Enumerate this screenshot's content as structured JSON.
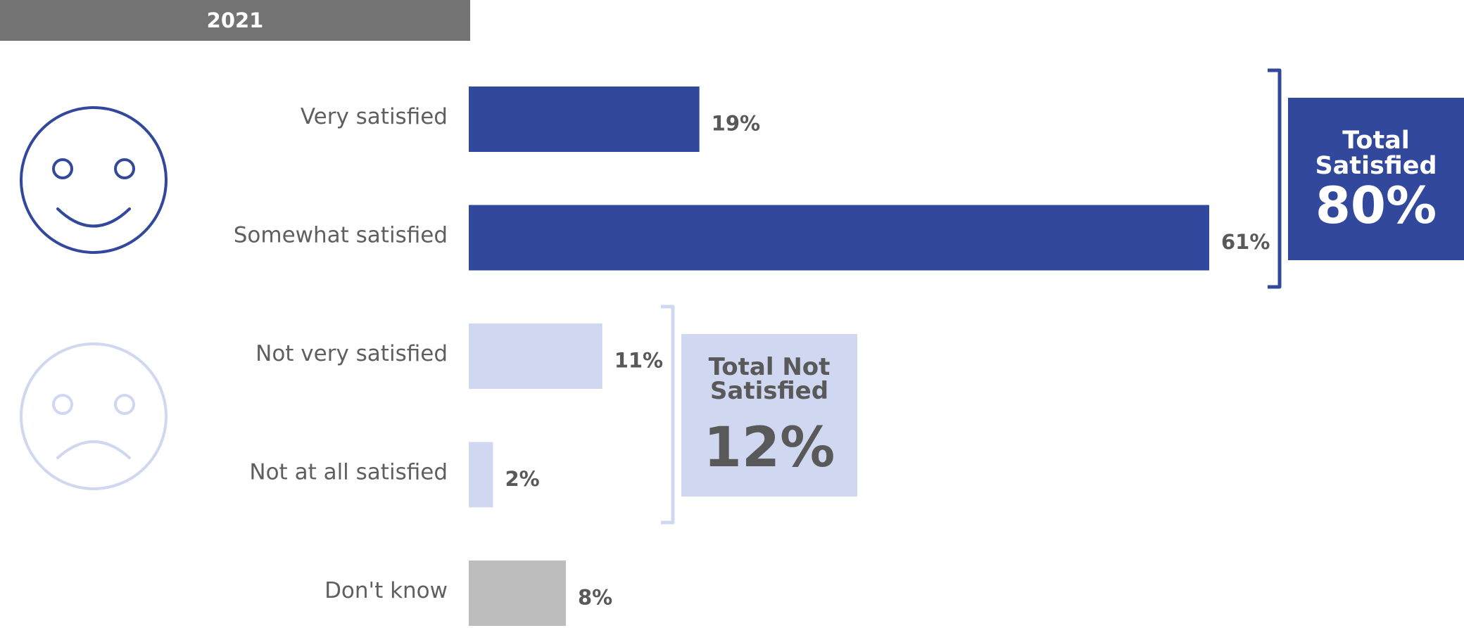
{
  "year_tab": "2021",
  "colors": {
    "satisfied": "#31489c",
    "not_satisfied": "#d0d7f0",
    "dont_know": "#bdbdbd",
    "year_tab": "#737373",
    "label_text": "#5f5f5f",
    "value_text": "#595959"
  },
  "icons": {
    "satisfied": "smiley-face-icon",
    "not_satisfied": "sad-face-icon"
  },
  "totals": {
    "satisfied": {
      "label_line1": "Total",
      "label_line2": "Satisfied",
      "value": "80%"
    },
    "not_satisfied": {
      "label_line1": "Total Not",
      "label_line2": "Satisfied",
      "value": "12%"
    }
  },
  "chart_data": {
    "type": "bar",
    "orientation": "horizontal",
    "categories": [
      "Very satisfied",
      "Somewhat satisfied",
      "Not very satisfied",
      "Not at all satisfied",
      "Don't know"
    ],
    "values": [
      19,
      61,
      11,
      2,
      8
    ],
    "value_labels": [
      "19%",
      "61%",
      "11%",
      "2%",
      "8%"
    ],
    "bar_colors": [
      "#31489c",
      "#31489c",
      "#d0d7f0",
      "#d0d7f0",
      "#bdbdbd"
    ],
    "groups": [
      {
        "name": "Total Satisfied",
        "categories": [
          "Very satisfied",
          "Somewhat satisfied"
        ],
        "total": 80
      },
      {
        "name": "Total Not Satisfied",
        "categories": [
          "Not very satisfied",
          "Not at all satisfied"
        ],
        "total": 12
      }
    ],
    "xlim": [
      0,
      61
    ],
    "grid": false,
    "title": "",
    "xlabel": "",
    "ylabel": ""
  }
}
